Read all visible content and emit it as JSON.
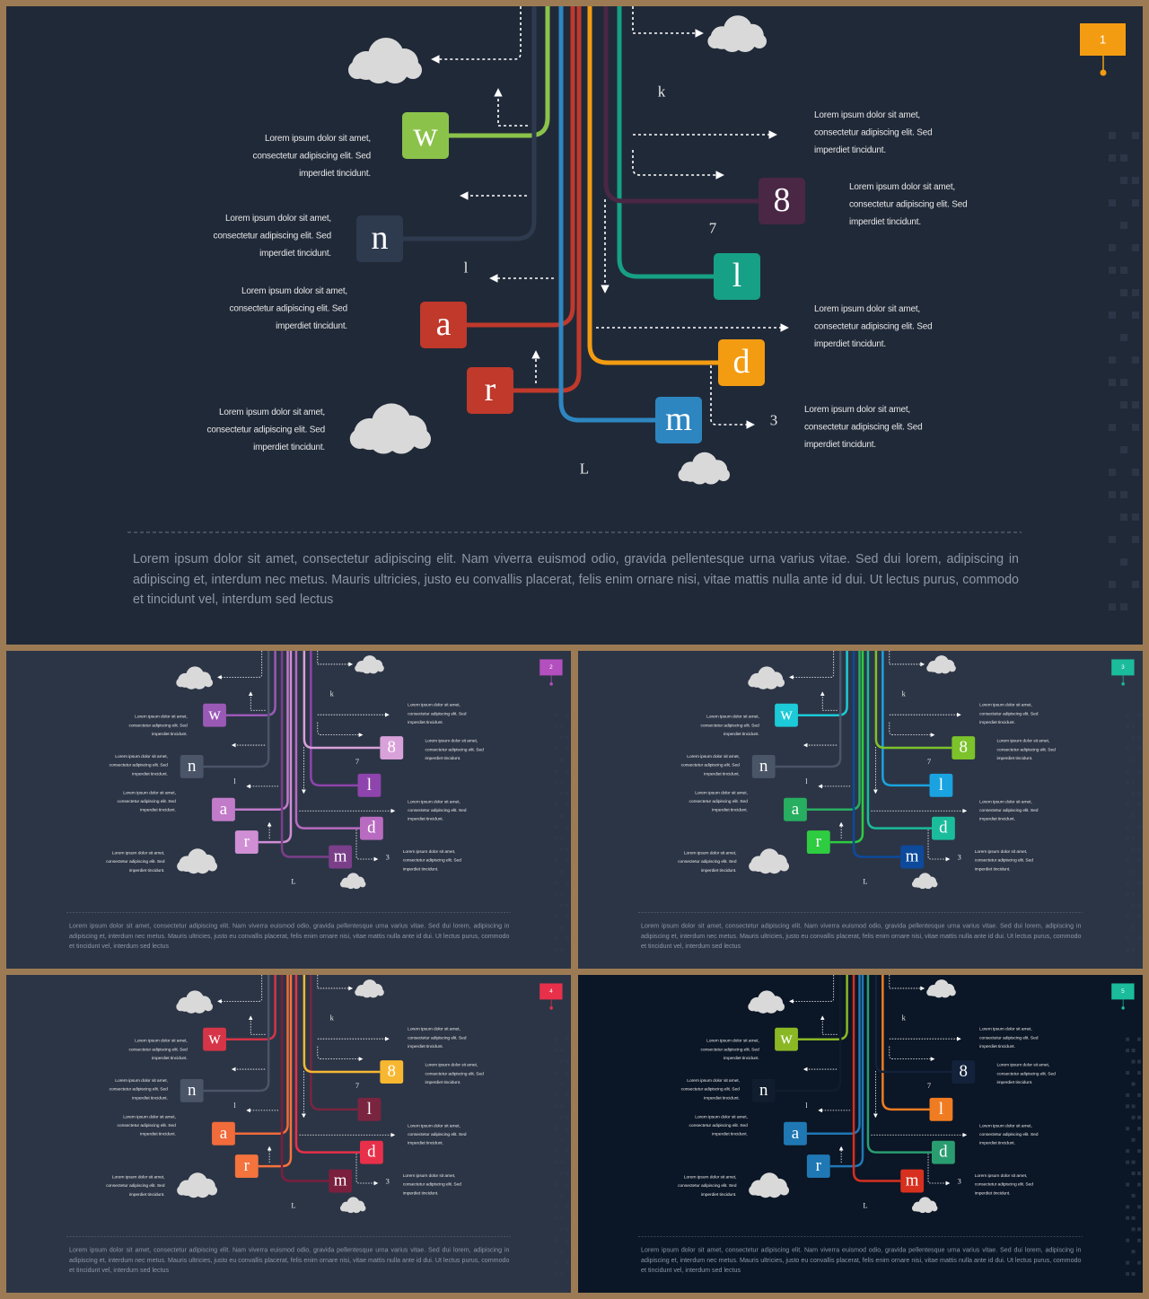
{
  "slides": [
    {
      "page": "1",
      "bg": "#202938",
      "badge_color": "#f39c12",
      "boxes": [
        {
          "label": "w",
          "color": "#8bc34a"
        },
        {
          "label": "n",
          "color": "#2e3a4e"
        },
        {
          "label": "a",
          "color": "#c0392b"
        },
        {
          "label": "r",
          "color": "#c0392b"
        },
        {
          "label": "m",
          "color": "#2e86c1"
        },
        {
          "label": "d",
          "color": "#f39c12"
        },
        {
          "label": "l",
          "color": "#16a085"
        },
        {
          "label": "8",
          "color": "#4a2745"
        }
      ],
      "marks": [
        "k",
        "7",
        "l",
        "3",
        "L"
      ],
      "notes": [
        [
          "Lorem ipsum dolor sit amet,",
          "consectetur adipiscing elit. Sed",
          "imperdiet tincidunt."
        ],
        [
          "Lorem ipsum dolor sit amet,",
          "consectetur adipiscing elit. Sed",
          "imperdiet tincidunt."
        ],
        [
          "Lorem ipsum dolor sit amet,",
          "consectetur adipiscing elit. Sed",
          "imperdiet tincidunt."
        ],
        [
          "Lorem ipsum dolor sit amet,",
          "consectetur adipiscing elit. Sed",
          "imperdiet tincidunt."
        ],
        [
          "Lorem ipsum dolor sit amet,",
          "consectetur adipiscing elit. Sed",
          "imperdiet tincidunt."
        ],
        [
          "Lorem ipsum dolor sit amet,",
          "consectetur adipiscing elit. Sed",
          "imperdiet tincidunt."
        ],
        [
          "Lorem ipsum dolor sit amet,",
          "consectetur adipiscing elit. Sed",
          "imperdiet tincidunt."
        ],
        [
          "Lorem ipsum dolor sit amet,",
          "consectetur adipiscing elit. Sed",
          "imperdiet tincidunt."
        ]
      ],
      "paragraph": "Lorem ipsum dolor sit amet, consectetur adipiscing elit. Nam viverra euismod odio, gravida pellentesque urna varius vitae. Sed dui lorem, adipiscing in adipiscing et, interdum nec metus. Mauris ultricies, justo eu convallis placerat, felis enim ornare nisi, vitae mattis nulla ante id dui. Ut lectus purus, commodo  et tincidunt vel, interdum sed lectus"
    },
    {
      "page": "2",
      "bg": "#2c3546",
      "badge_color": "#b44fbf",
      "boxes": [
        {
          "label": "w",
          "color": "#9b59b6"
        },
        {
          "label": "n",
          "color": "#4a5568"
        },
        {
          "label": "a",
          "color": "#c27bc9"
        },
        {
          "label": "r",
          "color": "#d08fd4"
        },
        {
          "label": "m",
          "color": "#7b3f8a"
        },
        {
          "label": "d",
          "color": "#b86bc0"
        },
        {
          "label": "l",
          "color": "#8e44ad"
        },
        {
          "label": "8",
          "color": "#d9a1d9"
        }
      ],
      "marks": [
        "k",
        "7",
        "l",
        "3",
        "L"
      ],
      "notes": [
        [
          "Lorem ipsum dolor sit amet,",
          "consectetur adipiscing elit. Sed",
          "imperdiet tincidunt."
        ],
        [
          "Lorem ipsum dolor sit amet,",
          "consectetur adipiscing elit. Sed",
          "imperdiet tincidunt."
        ],
        [
          "Lorem ipsum dolor sit amet,",
          "consectetur adipiscing elit. Sed",
          "imperdiet tincidunt."
        ],
        [
          "Lorem ipsum dolor sit amet,",
          "consectetur adipiscing elit. Sed",
          "imperdiet tincidunt."
        ],
        [
          "Lorem ipsum dolor sit amet,",
          "consectetur adipiscing elit. Sed",
          "imperdiet tincidunt."
        ],
        [
          "Lorem ipsum dolor sit amet,",
          "consectetur adipiscing elit. Sed",
          "imperdiet tincidunt."
        ],
        [
          "Lorem ipsum dolor sit amet,",
          "consectetur adipiscing elit. Sed",
          "imperdiet tincidunt."
        ],
        [
          "Lorem ipsum dolor sit amet,",
          "consectetur adipiscing elit. Sed",
          "imperdiet tincidunt."
        ]
      ],
      "paragraph": "Lorem ipsum dolor sit amet, consectetur adipiscing elit. Nam viverra euismod odio, gravida pellentesque urna varius vitae. Sed dui lorem, adipiscing in adipiscing et, interdum nec metus. Mauris ultricies, justo eu convallis placerat, felis enim ornare nisi, vitae mattis nulla ante id dui. Ut lectus purus, commodo  et tincidunt vel, interdum sed lectus"
    },
    {
      "page": "3",
      "bg": "#2c3546",
      "badge_color": "#1abc9c",
      "boxes": [
        {
          "label": "w",
          "color": "#1ccad8"
        },
        {
          "label": "n",
          "color": "#4a5568"
        },
        {
          "label": "a",
          "color": "#27ae60"
        },
        {
          "label": "r",
          "color": "#2ecc40"
        },
        {
          "label": "m",
          "color": "#0d4a9c"
        },
        {
          "label": "d",
          "color": "#1abc9c"
        },
        {
          "label": "l",
          "color": "#1aa3e0"
        },
        {
          "label": "8",
          "color": "#7cc22b"
        }
      ],
      "marks": [
        "k",
        "7",
        "l",
        "3",
        "L"
      ],
      "notes": [
        [
          "Lorem ipsum dolor sit amet,",
          "consectetur adipiscing elit. Sed",
          "imperdiet tincidunt."
        ],
        [
          "Lorem ipsum dolor sit amet,",
          "consectetur adipiscing elit. Sed",
          "imperdiet tincidunt."
        ],
        [
          "Lorem ipsum dolor sit amet,",
          "consectetur adipiscing elit. Sed",
          "imperdiet tincidunt."
        ],
        [
          "Lorem ipsum dolor sit amet,",
          "consectetur adipiscing elit. Sed",
          "imperdiet tincidunt."
        ],
        [
          "Lorem ipsum dolor sit amet,",
          "consectetur adipiscing elit. Sed",
          "imperdiet tincidunt."
        ],
        [
          "Lorem ipsum dolor sit amet,",
          "consectetur adipiscing elit. Sed",
          "imperdiet tincidunt."
        ],
        [
          "Lorem ipsum dolor sit amet,",
          "consectetur adipiscing elit. Sed",
          "imperdiet tincidunt."
        ],
        [
          "Lorem ipsum dolor sit amet,",
          "consectetur adipiscing elit. Sed",
          "imperdiet tincidunt."
        ]
      ],
      "paragraph": "Lorem ipsum dolor sit amet, consectetur adipiscing elit. Nam viverra euismod odio, gravida pellentesque urna varius vitae. Sed dui lorem, adipiscing in adipiscing et, interdum nec metus. Mauris ultricies, justo eu convallis placerat, felis enim ornare nisi, vitae mattis nulla ante id dui. Ut lectus purus, commodo  et tincidunt vel, interdum sed lectus"
    },
    {
      "page": "4",
      "bg": "#2c3546",
      "badge_color": "#e8304a",
      "boxes": [
        {
          "label": "w",
          "color": "#d63447"
        },
        {
          "label": "n",
          "color": "#4a5568"
        },
        {
          "label": "a",
          "color": "#f26b3a"
        },
        {
          "label": "r",
          "color": "#f5733d"
        },
        {
          "label": "m",
          "color": "#7a1f3d"
        },
        {
          "label": "d",
          "color": "#e8304a"
        },
        {
          "label": "l",
          "color": "#7a2540"
        },
        {
          "label": "8",
          "color": "#f7b731"
        }
      ],
      "marks": [
        "k",
        "7",
        "l",
        "3",
        "L"
      ],
      "notes": [
        [
          "Lorem ipsum dolor sit amet,",
          "consectetur adipiscing elit. Sed",
          "imperdiet tincidunt."
        ],
        [
          "Lorem ipsum dolor sit amet,",
          "consectetur adipiscing elit. Sed",
          "imperdiet tincidunt."
        ],
        [
          "Lorem ipsum dolor sit amet,",
          "consectetur adipiscing elit. Sed",
          "imperdiet tincidunt."
        ],
        [
          "Lorem ipsum dolor sit amet,",
          "consectetur adipiscing elit. Sed",
          "imperdiet tincidunt."
        ],
        [
          "Lorem ipsum dolor sit amet,",
          "consectetur adipiscing elit. Sed",
          "imperdiet tincidunt."
        ],
        [
          "Lorem ipsum dolor sit amet,",
          "consectetur adipiscing elit. Sed",
          "imperdiet tincidunt."
        ],
        [
          "Lorem ipsum dolor sit amet,",
          "consectetur adipiscing elit. Sed",
          "imperdiet tincidunt."
        ],
        [
          "Lorem ipsum dolor sit amet,",
          "consectetur adipiscing elit. Sed",
          "imperdiet tincidunt."
        ]
      ],
      "paragraph": "Lorem ipsum dolor sit amet, consectetur adipiscing elit. Nam viverra euismod odio, gravida pellentesque urna varius vitae. Sed dui lorem, adipiscing in adipiscing et, interdum nec metus. Mauris ultricies, justo eu convallis placerat, felis enim ornare nisi, vitae mattis nulla ante id dui. Ut lectus purus, commodo  et tincidunt vel, interdum sed lectus"
    },
    {
      "page": "5",
      "bg": "#0b1626",
      "badge_color": "#1abc9c",
      "boxes": [
        {
          "label": "w",
          "color": "#8ab825"
        },
        {
          "label": "n",
          "color": "#0f1d2e"
        },
        {
          "label": "a",
          "color": "#1f78b4"
        },
        {
          "label": "r",
          "color": "#1f78b4"
        },
        {
          "label": "m",
          "color": "#d7301f"
        },
        {
          "label": "d",
          "color": "#2a9d70"
        },
        {
          "label": "l",
          "color": "#f07c22"
        },
        {
          "label": "8",
          "color": "#13223a"
        }
      ],
      "marks": [
        "k",
        "7",
        "l",
        "3",
        "L"
      ],
      "notes": [
        [
          "Lorem ipsum dolor sit amet,",
          "consectetur adipiscing elit. Sed",
          "imperdiet tincidunt."
        ],
        [
          "Lorem ipsum dolor sit amet,",
          "consectetur adipiscing elit. Sed",
          "imperdiet tincidunt."
        ],
        [
          "Lorem ipsum dolor sit amet,",
          "consectetur adipiscing elit. Sed",
          "imperdiet tincidunt."
        ],
        [
          "Lorem ipsum dolor sit amet,",
          "consectetur adipiscing elit. Sed",
          "imperdiet tincidunt."
        ],
        [
          "Lorem ipsum dolor sit amet,",
          "consectetur adipiscing elit. Sed",
          "imperdiet tincidunt."
        ],
        [
          "Lorem ipsum dolor sit amet,",
          "consectetur adipiscing elit. Sed",
          "imperdiet tincidunt."
        ],
        [
          "Lorem ipsum dolor sit amet,",
          "consectetur adipiscing elit. Sed",
          "imperdiet tincidunt."
        ],
        [
          "Lorem ipsum dolor sit amet,",
          "consectetur adipiscing elit. Sed",
          "imperdiet tincidunt."
        ]
      ],
      "paragraph": "Lorem ipsum dolor sit amet, consectetur adipiscing elit. Nam viverra euismod odio, gravida pellentesque urna varius vitae. Sed dui lorem, adipiscing in adipiscing et, interdum nec metus. Mauris ultricies, justo eu convallis placerat, felis enim ornare nisi, vitae mattis nulla ante id dui. Ut lectus purus, commodo  et tincidunt vel, interdum sed lectus"
    }
  ]
}
